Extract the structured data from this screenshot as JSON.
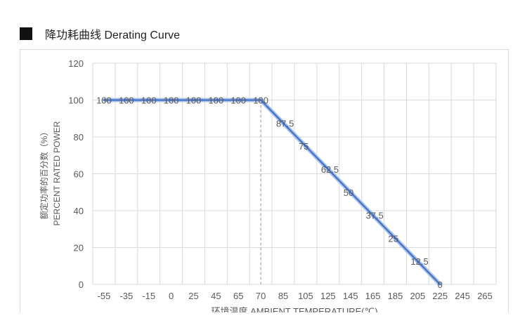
{
  "heading": {
    "icon": "black-square-icon",
    "title": "降功耗曲线 Derating Curve"
  },
  "colors": {
    "line": "#4472c4",
    "line_glow": "#a9c3ea",
    "grid": "#d9d9d9",
    "dash": "#a6a6a6",
    "text": "#595959"
  },
  "chart_data": {
    "type": "line",
    "title": "",
    "categories": [
      "-55",
      "-35",
      "-15",
      "0",
      "25",
      "45",
      "65",
      "70",
      "85",
      "105",
      "125",
      "145",
      "165",
      "185",
      "205",
      "225",
      "245",
      "265"
    ],
    "series": [
      {
        "values": [
          100,
          100,
          100,
          100,
          100,
          100,
          100,
          100,
          87.5,
          75,
          62.5,
          50,
          37.5,
          25,
          12.5,
          0,
          null,
          null
        ],
        "data_labels": [
          "100",
          "100",
          "100",
          "100",
          "100",
          "100",
          "100",
          "100",
          "87.5",
          "75",
          "62.5",
          "50",
          "37.5",
          "25",
          "12.5",
          "0"
        ]
      }
    ],
    "ylim": [
      0,
      120
    ],
    "yticks": [
      "0",
      "20",
      "40",
      "60",
      "80",
      "100",
      "120"
    ],
    "ylabel_cn": "额定功率的百分数（%）",
    "ylabel_en": "PERCENT RATED POWER",
    "xlabel": "环境温度 AMBIENT TEMPERATURE(℃)",
    "marker_category": "70",
    "grid": true,
    "legend": "none"
  }
}
